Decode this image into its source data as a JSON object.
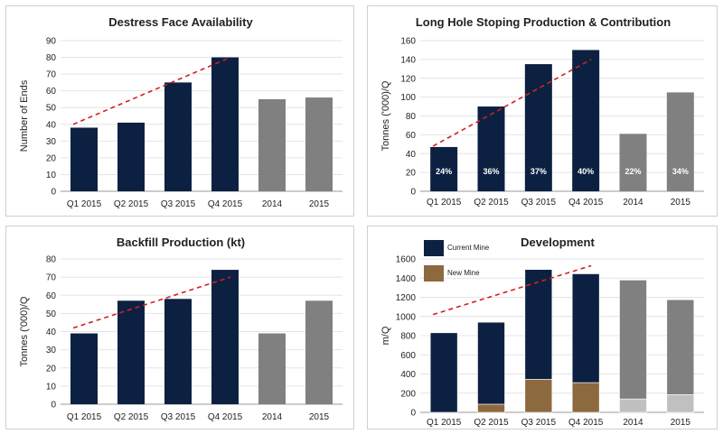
{
  "chart_data": [
    {
      "type": "bar",
      "title": "Destress Face Availability",
      "ylabel": "Number of Ends",
      "categories": [
        "Q1 2015",
        "Q2 2015",
        "Q3 2015",
        "Q4 2015",
        "2014",
        "2015"
      ],
      "values": [
        38,
        41,
        65,
        80,
        55,
        56
      ],
      "bar_colors": [
        "#0c2141",
        "#0c2141",
        "#0c2141",
        "#0c2141",
        "#808080",
        "#808080"
      ],
      "ylim": [
        0,
        90
      ],
      "yticks": [
        "0",
        "10",
        "20",
        "30",
        "40",
        "50",
        "60",
        "70",
        "80",
        "90"
      ],
      "trend": [
        40,
        80
      ],
      "grid": true
    },
    {
      "type": "bar",
      "title": "Long Hole Stoping Production & Contribution",
      "ylabel": "Tonnes ('000)/Q",
      "categories": [
        "Q1 2015",
        "Q2 2015",
        "Q3 2015",
        "Q4 2015",
        "2014",
        "2015"
      ],
      "values": [
        47,
        90,
        135,
        150,
        61,
        105
      ],
      "data_labels": [
        "24%",
        "36%",
        "37%",
        "40%",
        "22%",
        "34%"
      ],
      "bar_colors": [
        "#0c2141",
        "#0c2141",
        "#0c2141",
        "#0c2141",
        "#808080",
        "#808080"
      ],
      "ylim": [
        0,
        160
      ],
      "yticks": [
        "0",
        "20",
        "40",
        "60",
        "80",
        "100",
        "120",
        "140",
        "160"
      ],
      "trend": [
        48,
        140
      ],
      "grid": true
    },
    {
      "type": "bar",
      "title": "Backfill Production (kt)",
      "ylabel": "Tonnes ('000)/Q",
      "categories": [
        "Q1 2015",
        "Q2 2015",
        "Q3 2015",
        "Q4 2015",
        "2014",
        "2015"
      ],
      "values": [
        39,
        57,
        58,
        74,
        39,
        57
      ],
      "bar_colors": [
        "#0c2141",
        "#0c2141",
        "#0c2141",
        "#0c2141",
        "#808080",
        "#808080"
      ],
      "ylim": [
        0,
        80
      ],
      "yticks": [
        "0",
        "10",
        "20",
        "30",
        "40",
        "50",
        "60",
        "70",
        "80"
      ],
      "trend": [
        42,
        70
      ],
      "grid": true
    },
    {
      "type": "bar",
      "stacked": true,
      "title": "Development",
      "ylabel": "m/Q",
      "categories": [
        "Q1 2015",
        "Q2 2015",
        "Q3 2015",
        "Q4 2015",
        "2014",
        "2015"
      ],
      "series": [
        {
          "name": "New Mine",
          "values": [
            0,
            85,
            345,
            310,
            140,
            185
          ],
          "colors": [
            "#8c6a3e",
            "#8c6a3e",
            "#8c6a3e",
            "#8c6a3e",
            "#c0c0c0",
            "#c0c0c0"
          ]
        },
        {
          "name": "Current Mine",
          "values": [
            830,
            855,
            1145,
            1135,
            1240,
            990
          ],
          "colors": [
            "#0c2141",
            "#0c2141",
            "#0c2141",
            "#0c2141",
            "#808080",
            "#808080"
          ]
        }
      ],
      "legend": [
        {
          "label": "Current Mine",
          "color": "#0c2141"
        },
        {
          "label": "New Mine",
          "color": "#8c6a3e"
        }
      ],
      "legend_position": "top-left",
      "ylim": [
        0,
        1600
      ],
      "yticks": [
        "0",
        "200",
        "400",
        "600",
        "800",
        "1000",
        "1200",
        "1400",
        "1600"
      ],
      "trend": [
        1020,
        1530
      ],
      "grid": true
    }
  ]
}
